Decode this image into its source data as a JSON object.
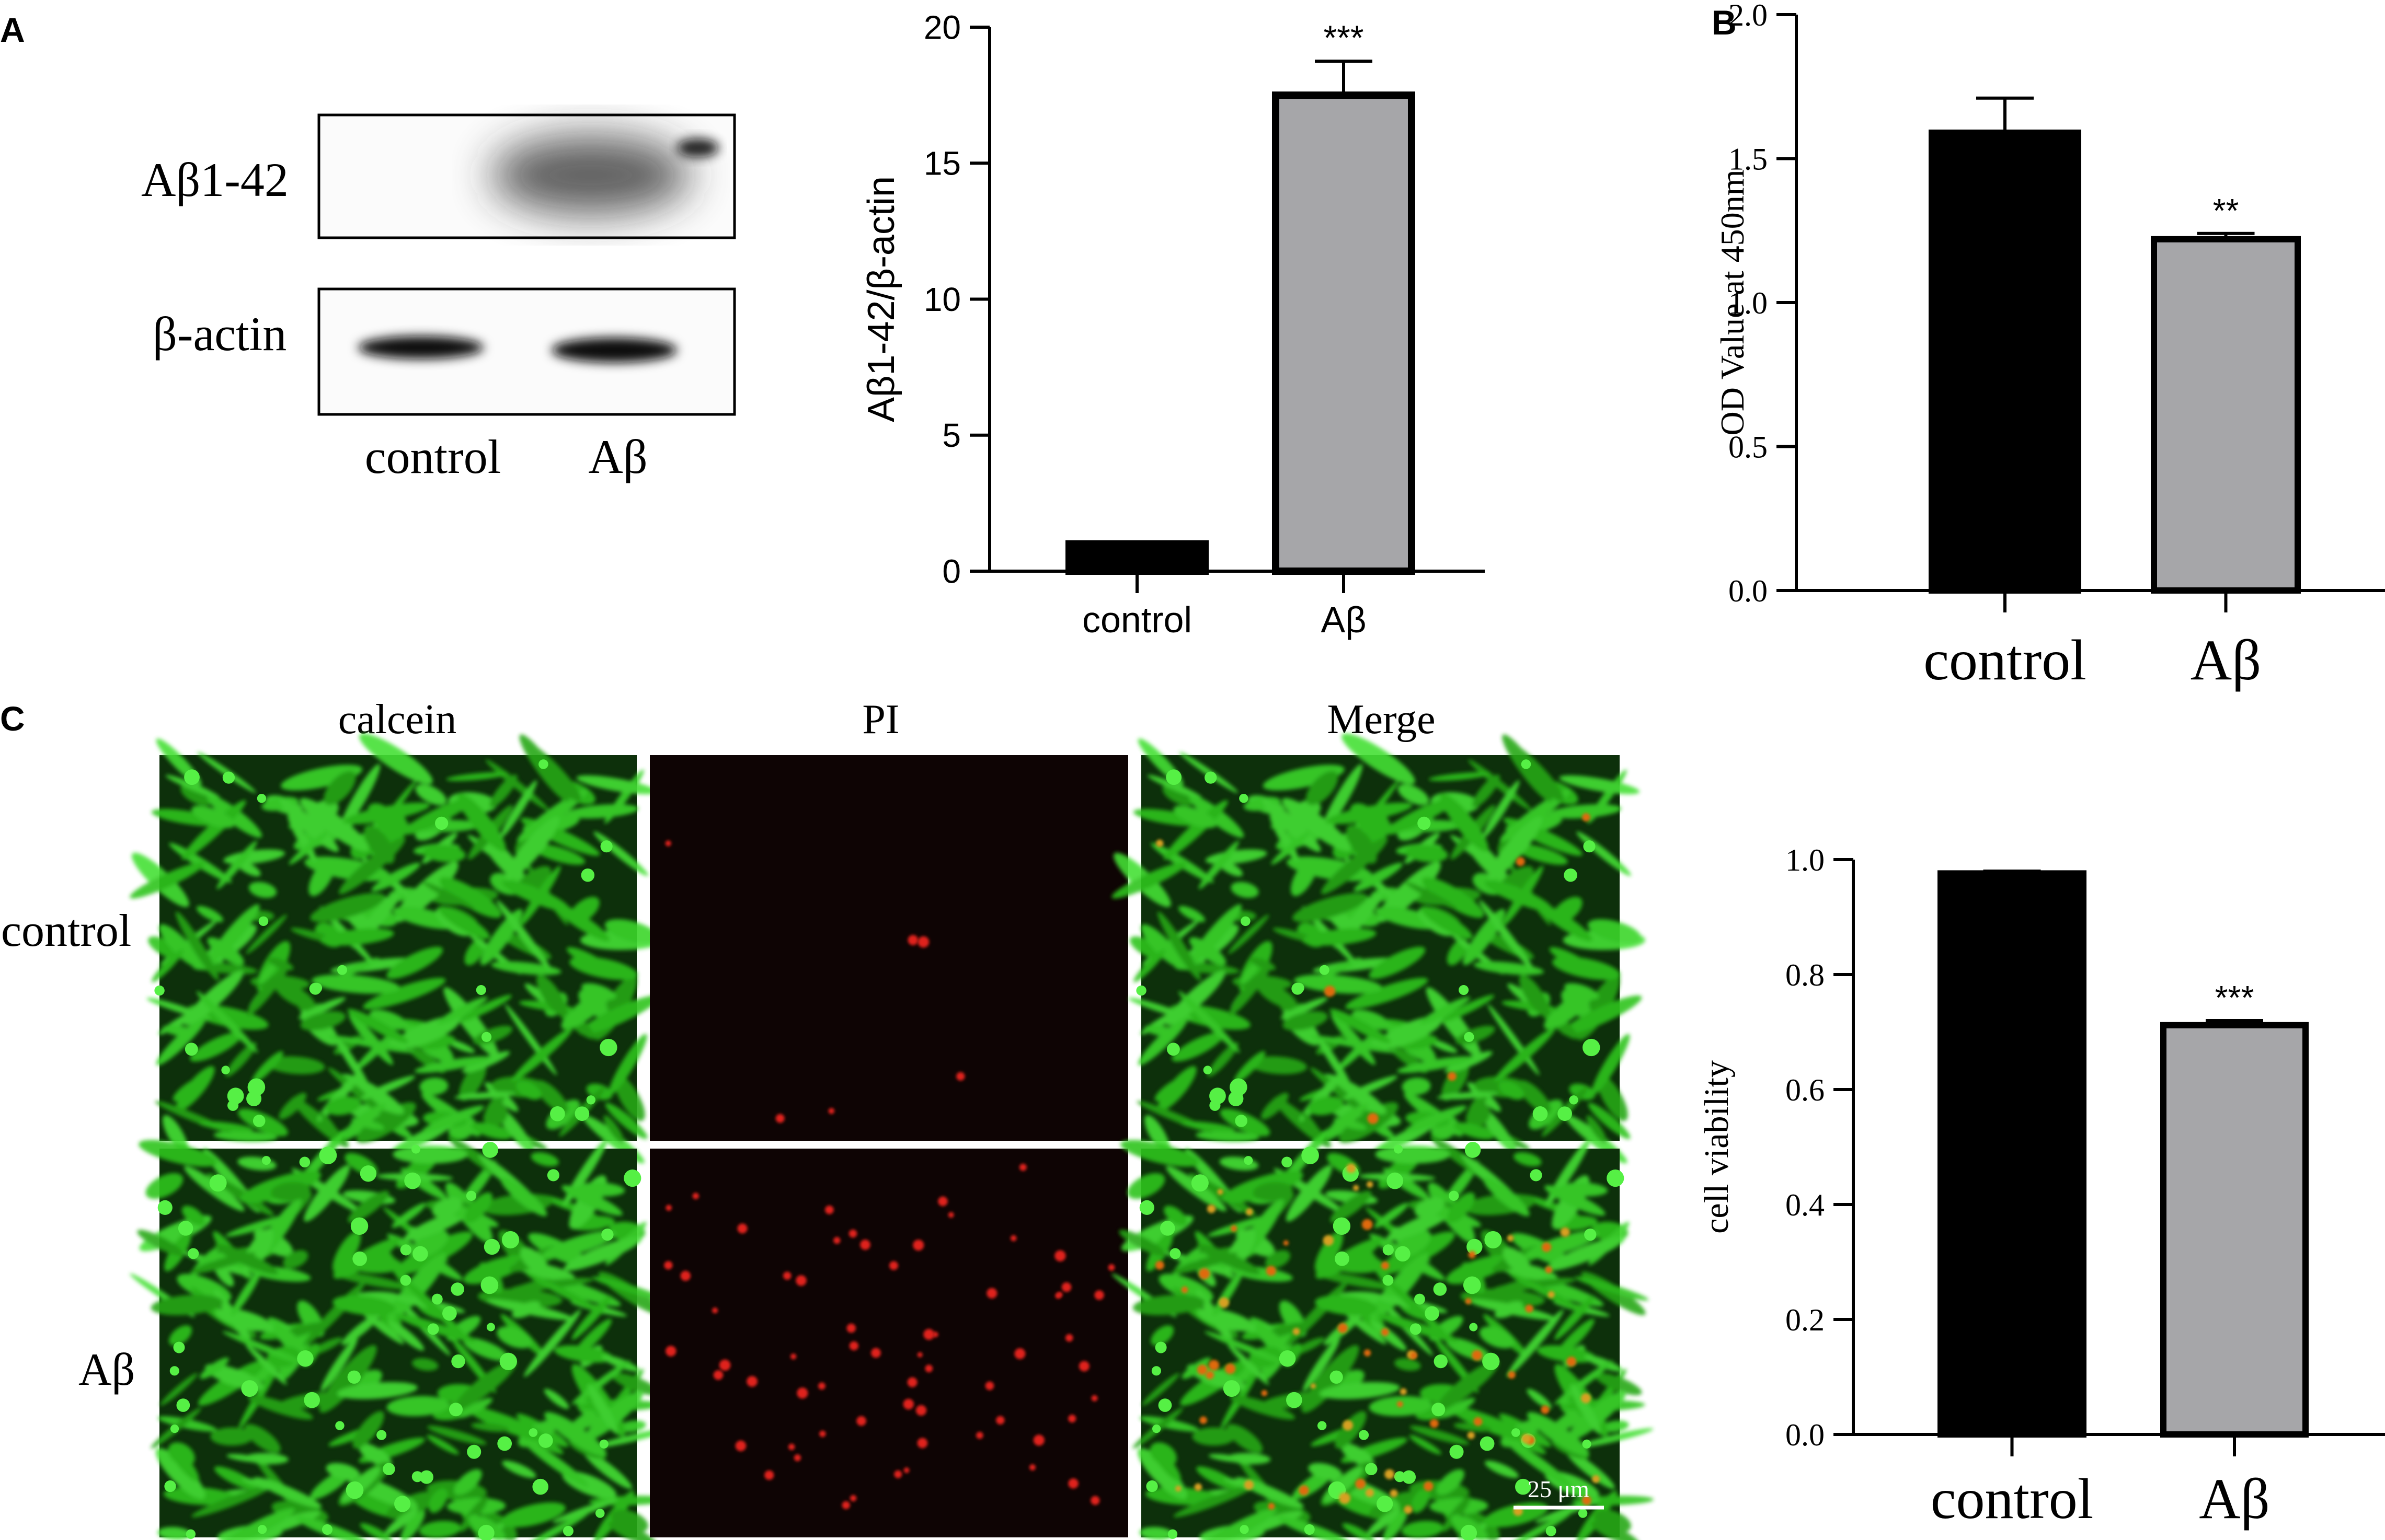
{
  "panel_labels": {
    "a": "A",
    "b": "B",
    "c": "C"
  },
  "western_blot": {
    "band_labels": [
      "Aβ1-42",
      "β-actin"
    ],
    "lane_labels": [
      "control",
      "Aβ"
    ]
  },
  "microscopy": {
    "column_headers": [
      "calcein",
      "PI",
      "Merge"
    ],
    "row_labels": [
      "control",
      "Aβ"
    ],
    "scale_bar": "25 μm"
  },
  "colors": {
    "control_bar": "#000000",
    "abeta_bar": "#a6a6a9",
    "calcein": "#2fc41d",
    "pi": "#e0201a"
  },
  "chart_data": [
    {
      "id": "A",
      "type": "bar",
      "categories": [
        "control",
        "Aβ"
      ],
      "values": [
        1.0,
        17.5
      ],
      "errors": [
        0.0,
        1.25
      ],
      "significance": [
        "",
        "***"
      ],
      "ylabel": "Aβ1-42/β-actin",
      "ylim": [
        0,
        20
      ],
      "yticks": [
        "0",
        "5",
        "10",
        "15",
        "20"
      ],
      "grid": false
    },
    {
      "id": "B",
      "type": "bar",
      "categories": [
        "control",
        "Aβ"
      ],
      "values": [
        1.59,
        1.22
      ],
      "errors": [
        0.12,
        0.02
      ],
      "significance": [
        "",
        "**"
      ],
      "ylabel": "OD Value at 450nm",
      "ylim": [
        0,
        2.0
      ],
      "yticks": [
        "0.0",
        "0.5",
        "1.0",
        "1.5",
        "2.0"
      ],
      "grid": false
    },
    {
      "id": "C",
      "type": "bar",
      "categories": [
        "control",
        "Aβ"
      ],
      "values": [
        0.976,
        0.712
      ],
      "errors": [
        0.004,
        0.008
      ],
      "significance": [
        "",
        "***"
      ],
      "ylabel": "cell viability",
      "ylim": [
        0,
        1.0
      ],
      "yticks": [
        "0.0",
        "0.2",
        "0.4",
        "0.6",
        "0.8",
        "1.0"
      ],
      "grid": false
    }
  ]
}
